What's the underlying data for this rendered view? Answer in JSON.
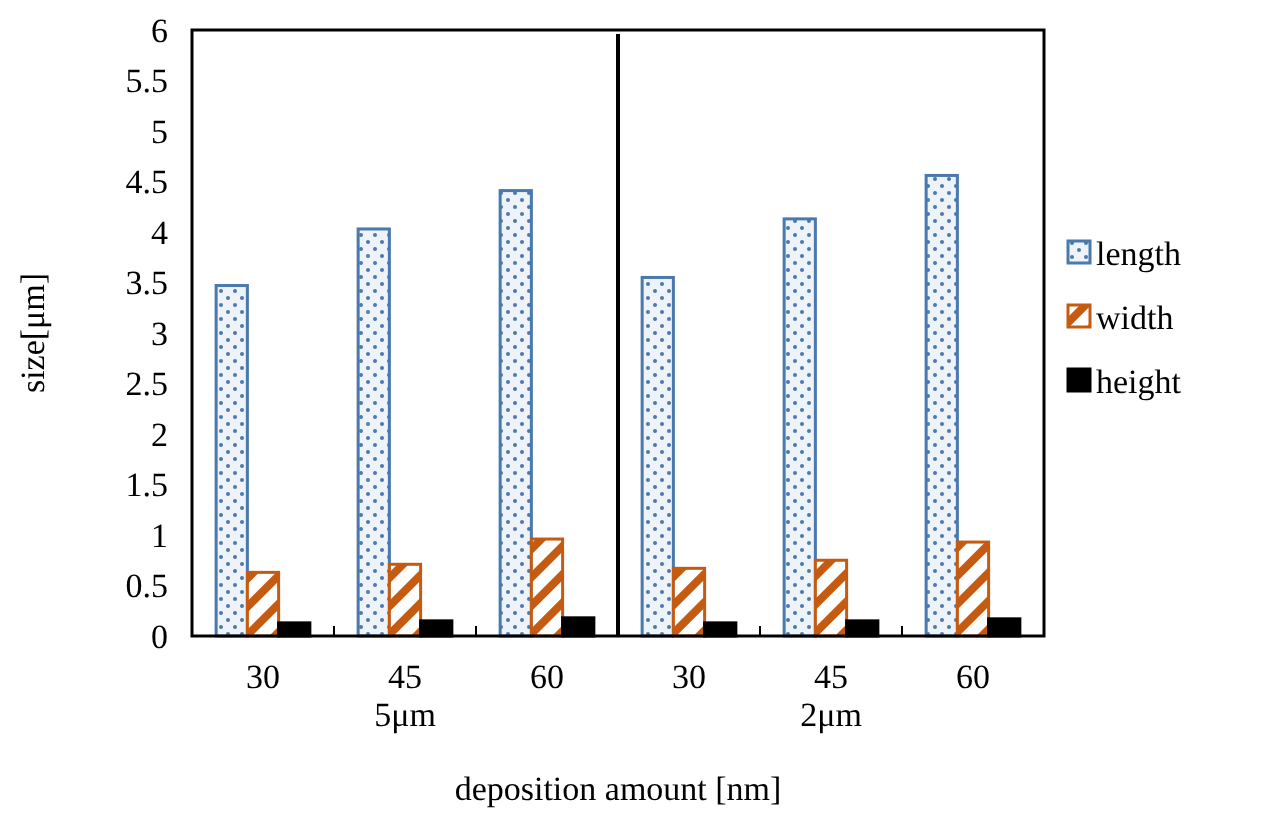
{
  "chart_data": {
    "type": "bar",
    "xlabel": "deposition amount [nm]",
    "ylabel": "size[μm]",
    "categories": [
      "30",
      "45",
      "60",
      "30",
      "45",
      "60"
    ],
    "series": [
      {
        "name": "length",
        "color": "#4a79ad",
        "values": [
          3.47,
          4.03,
          4.41,
          3.55,
          4.13,
          4.56
        ]
      },
      {
        "name": "width",
        "color": "#c55a11",
        "values": [
          0.63,
          0.71,
          0.96,
          0.67,
          0.75,
          0.93
        ]
      },
      {
        "name": "height",
        "color": "#000000",
        "values": [
          0.13,
          0.15,
          0.18,
          0.13,
          0.15,
          0.17
        ]
      }
    ],
    "annotations": [
      "5μm",
      "2μm"
    ],
    "ylim": [
      0,
      6
    ],
    "yticks": [
      0,
      0.5,
      1,
      1.5,
      2,
      2.5,
      3,
      3.5,
      4,
      4.5,
      5,
      5.5,
      6
    ],
    "grid": false,
    "legend": "right"
  }
}
